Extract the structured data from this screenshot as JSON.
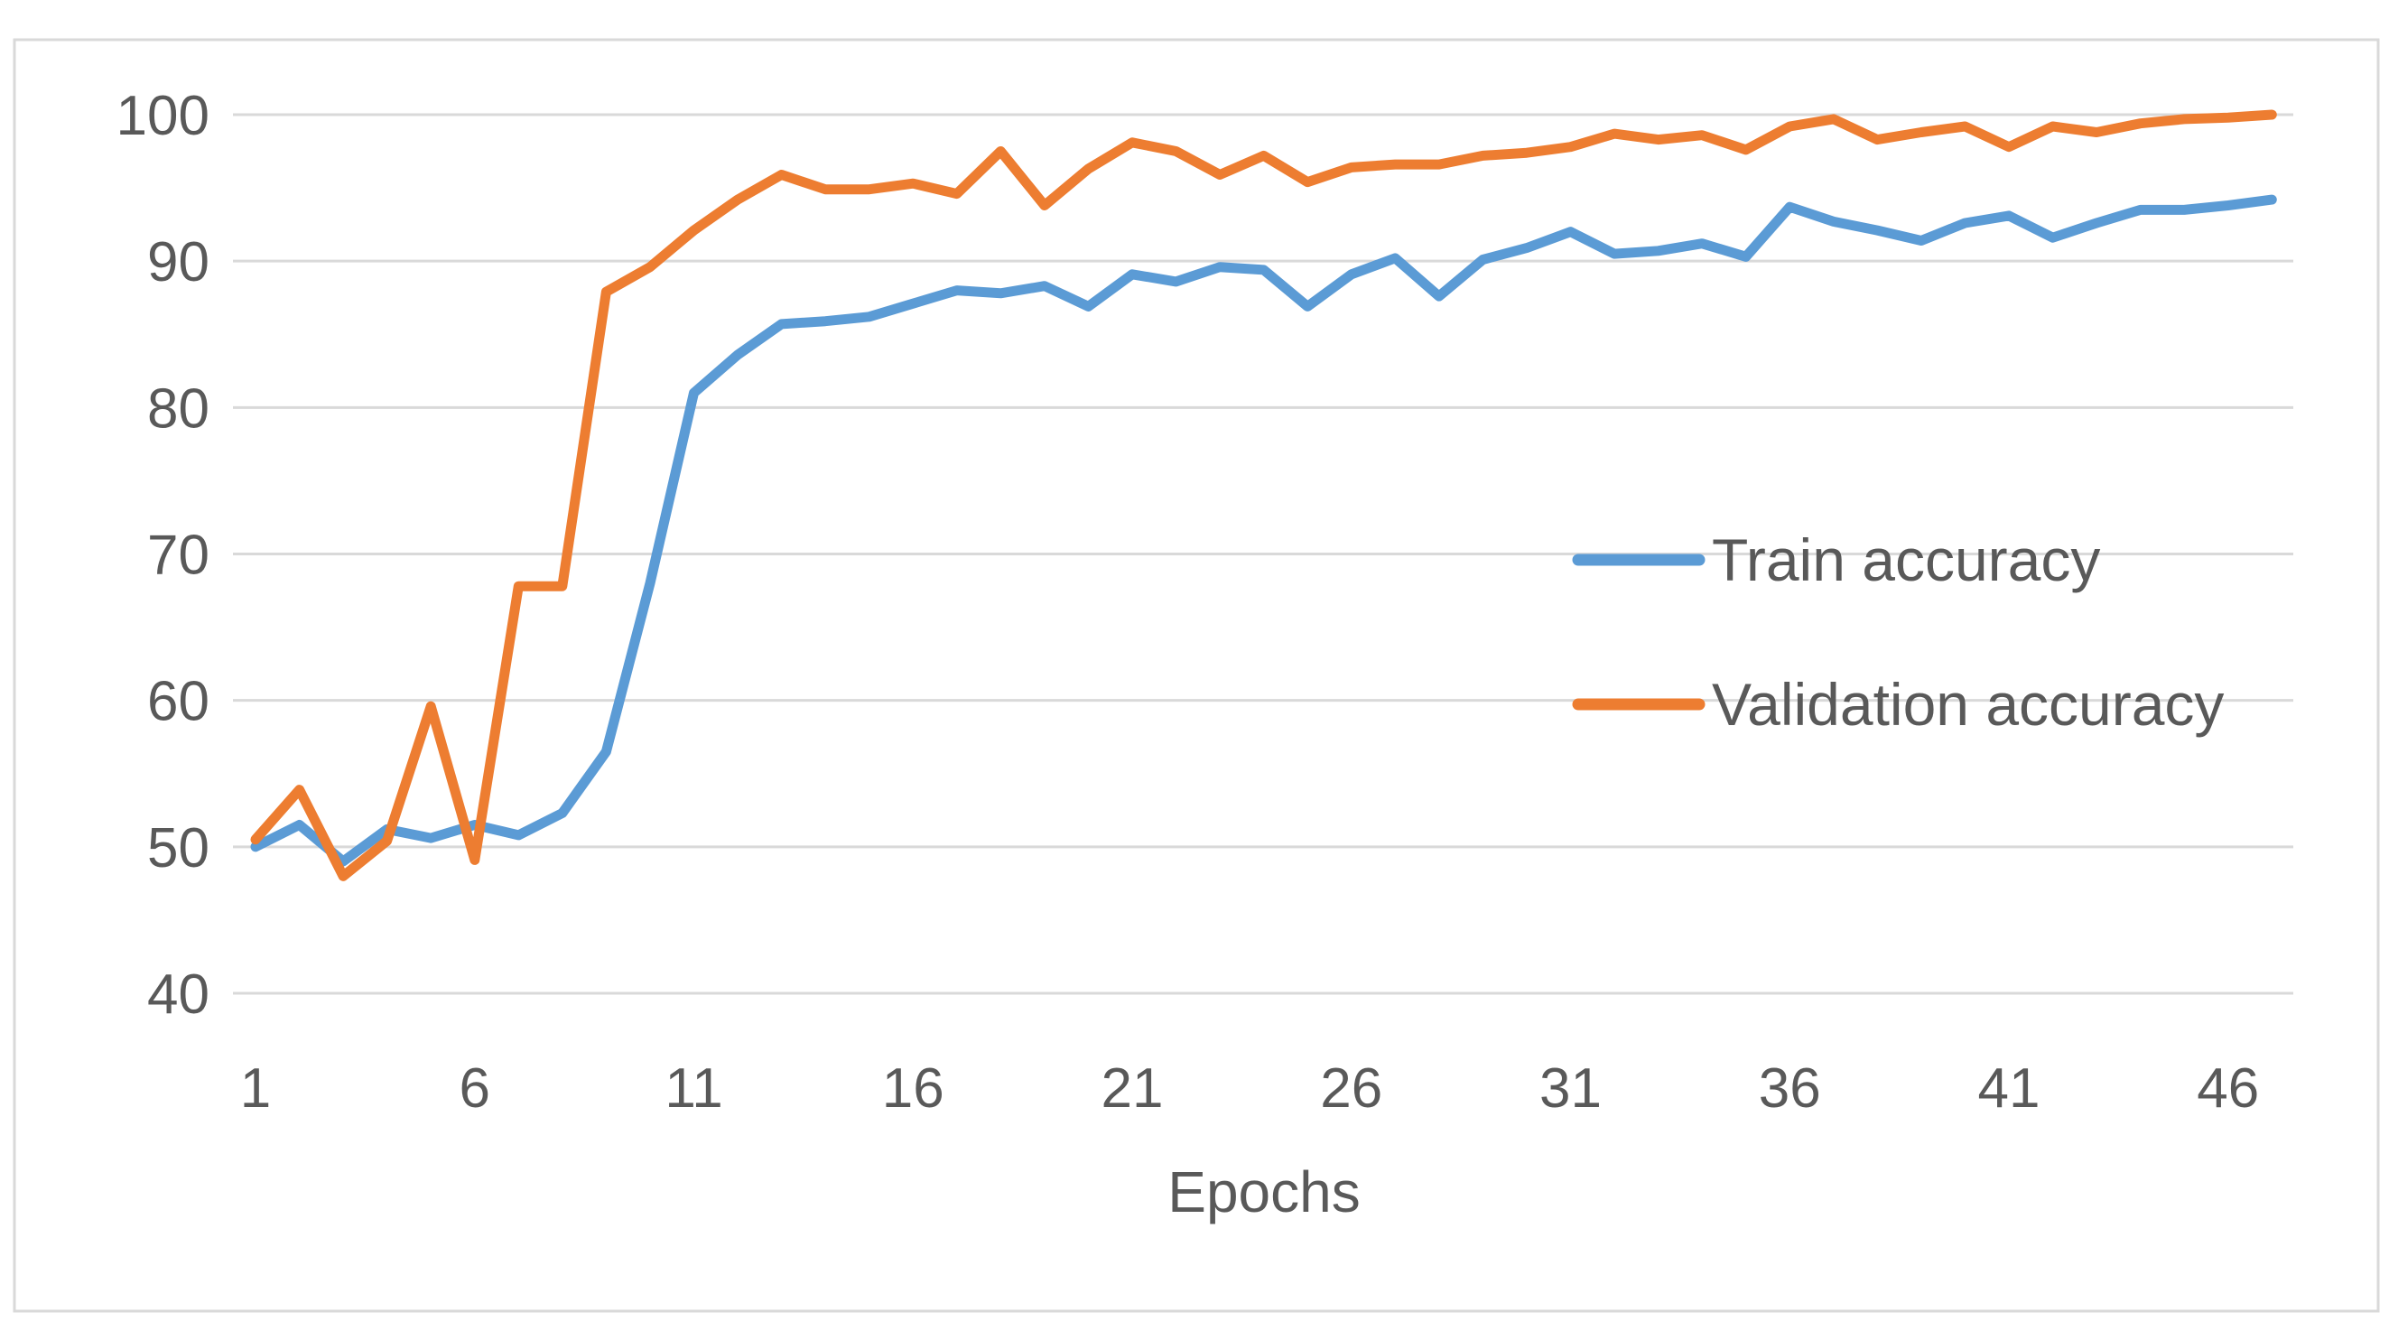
{
  "chart_data": {
    "type": "line",
    "title": "",
    "xlabel": "Epochs",
    "ylabel": "",
    "ylim": [
      40,
      100
    ],
    "yticks": [
      40,
      50,
      60,
      70,
      80,
      90,
      100
    ],
    "xlim": [
      1,
      47
    ],
    "xticks": [
      1,
      6,
      11,
      16,
      21,
      26,
      31,
      36,
      41,
      46
    ],
    "grid": "horizontal",
    "legend_position": "right",
    "x": [
      1,
      2,
      3,
      4,
      5,
      6,
      7,
      8,
      9,
      10,
      11,
      12,
      13,
      14,
      15,
      16,
      17,
      18,
      19,
      20,
      21,
      22,
      23,
      24,
      25,
      26,
      27,
      28,
      29,
      30,
      31,
      32,
      33,
      34,
      35,
      36,
      37,
      38,
      39,
      40,
      41,
      42,
      43,
      44,
      45,
      46,
      47
    ],
    "series": [
      {
        "name": "Train accuracy",
        "color": "#5B9BD5",
        "values": [
          50.0,
          51.5,
          49.0,
          51.2,
          50.6,
          51.5,
          50.8,
          52.3,
          56.5,
          68.0,
          81.0,
          83.6,
          85.7,
          85.9,
          86.2,
          87.1,
          88.0,
          87.8,
          88.3,
          86.9,
          89.1,
          88.6,
          89.6,
          89.4,
          86.9,
          89.1,
          90.2,
          87.6,
          90.1,
          90.9,
          92.0,
          90.5,
          90.7,
          91.2,
          90.3,
          93.7,
          92.7,
          92.1,
          91.4,
          92.6,
          93.1,
          91.6,
          92.6,
          93.5,
          93.5,
          93.8,
          94.2
        ]
      },
      {
        "name": "Validation accuracy",
        "color": "#ED7D31",
        "values": [
          50.5,
          53.9,
          48.0,
          50.4,
          59.6,
          49.1,
          67.8,
          67.8,
          87.9,
          89.6,
          92.1,
          94.2,
          95.9,
          94.9,
          94.9,
          95.3,
          94.6,
          97.5,
          93.8,
          96.3,
          98.1,
          97.5,
          95.9,
          97.2,
          95.4,
          96.4,
          96.6,
          96.6,
          97.2,
          97.4,
          97.8,
          98.7,
          98.3,
          98.6,
          97.6,
          99.2,
          99.7,
          98.3,
          98.8,
          99.2,
          97.8,
          99.2,
          98.8,
          99.4,
          99.7,
          99.8,
          100.0
        ]
      }
    ]
  }
}
